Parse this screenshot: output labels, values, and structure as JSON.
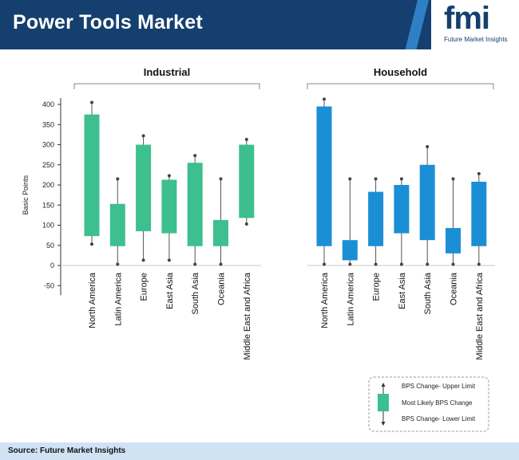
{
  "header": {
    "title": "Power Tools Market"
  },
  "logo": {
    "text": "fmi",
    "subtitle": "Future Market Insights"
  },
  "footer": {
    "source": "Source: Future Market Insights"
  },
  "colors": {
    "industrial": "#3dbf8f",
    "household": "#1a8fd6",
    "header": "#153f6e",
    "footer": "#cfe3f5"
  },
  "legend": {
    "upper": "BPS Change- Upper Limit",
    "likely": "Most Likely BPS Change",
    "lower": "BPS Change- Lower Limit"
  },
  "chart_data": {
    "type": "boxplot",
    "ylabel": "Basic Points",
    "ylim": [
      -50,
      400
    ],
    "yticks": [
      400,
      350,
      300,
      250,
      200,
      150,
      100,
      50,
      0,
      -50
    ],
    "groups": [
      {
        "name": "Industrial",
        "boxes": [
          {
            "category": "North America",
            "upper": 405,
            "high": 375,
            "low": 73,
            "lower": 53
          },
          {
            "category": "Latin America",
            "upper": 215,
            "high": 153,
            "low": 48,
            "lower": 3
          },
          {
            "category": "Europe",
            "upper": 322,
            "high": 300,
            "low": 85,
            "lower": 13
          },
          {
            "category": "East Asia",
            "upper": 223,
            "high": 213,
            "low": 80,
            "lower": 13
          },
          {
            "category": "South Asia",
            "upper": 273,
            "high": 255,
            "low": 48,
            "lower": 3
          },
          {
            "category": "Oceania",
            "upper": 215,
            "high": 113,
            "low": 48,
            "lower": 3
          },
          {
            "category": "Middle East and Africa",
            "upper": 313,
            "high": 300,
            "low": 118,
            "lower": 103
          }
        ]
      },
      {
        "name": "Household",
        "boxes": [
          {
            "category": "North America",
            "upper": 413,
            "high": 395,
            "low": 48,
            "lower": 3
          },
          {
            "category": "Latin America",
            "upper": 215,
            "high": 63,
            "low": 13,
            "lower": 3
          },
          {
            "category": "Europe",
            "upper": 215,
            "high": 183,
            "low": 48,
            "lower": 3
          },
          {
            "category": "East Asia",
            "upper": 215,
            "high": 200,
            "low": 80,
            "lower": 3
          },
          {
            "category": "South Asia",
            "upper": 295,
            "high": 250,
            "low": 63,
            "lower": 3
          },
          {
            "category": "Oceania",
            "upper": 215,
            "high": 93,
            "low": 30,
            "lower": 3
          },
          {
            "category": "Middle East and Africa",
            "upper": 228,
            "high": 208,
            "low": 48,
            "lower": 3
          }
        ]
      }
    ]
  }
}
